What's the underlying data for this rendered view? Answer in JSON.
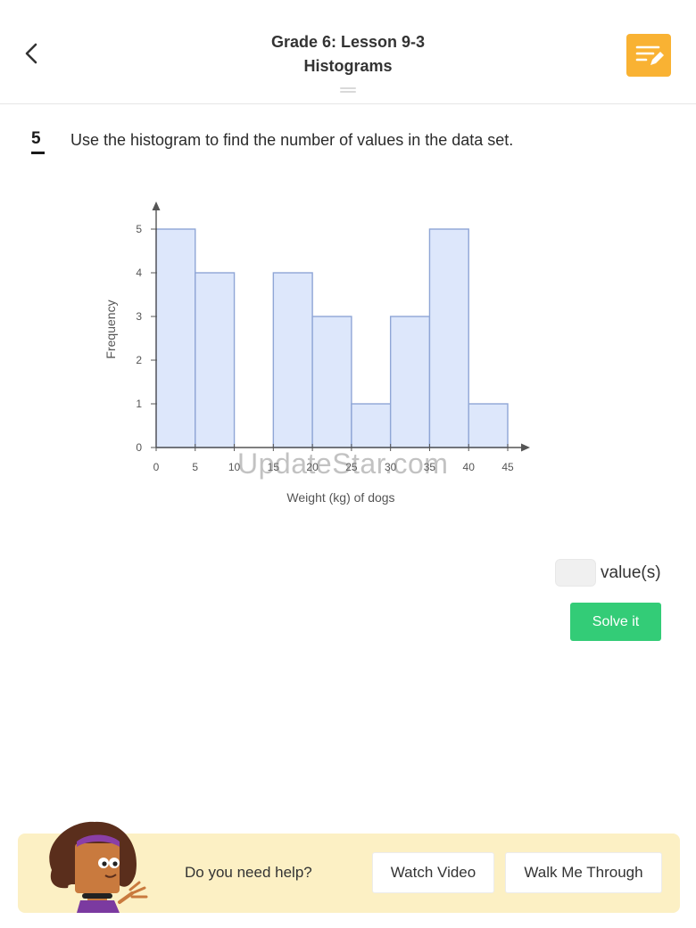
{
  "header": {
    "title_line1": "Grade 6: Lesson 9-3",
    "title_line2": "Histograms"
  },
  "question": {
    "number": "5",
    "text": "Use the histogram to find the number of values in the data set."
  },
  "chart_data": {
    "type": "bar",
    "categories": [
      "0-5",
      "5-10",
      "10-15",
      "15-20",
      "20-25",
      "25-30",
      "30-35",
      "35-40",
      "40-45"
    ],
    "bin_edges": [
      0,
      5,
      10,
      15,
      20,
      25,
      30,
      35,
      40,
      45
    ],
    "values": [
      5,
      4,
      0,
      4,
      3,
      1,
      3,
      5,
      1
    ],
    "title": "",
    "xlabel": "Weight (kg) of dogs",
    "ylabel": "Frequency",
    "xlim": [
      0,
      45
    ],
    "ylim": [
      0,
      5
    ],
    "x_ticks": [
      0,
      5,
      10,
      15,
      20,
      25,
      30,
      35,
      40,
      45
    ],
    "y_ticks": [
      0,
      1,
      2,
      3,
      4,
      5
    ],
    "grid": false,
    "bar_fill": "#dde7fb",
    "bar_stroke": "#8fa6d6"
  },
  "watermark": "UpdateStar.com",
  "answer": {
    "value": "",
    "unit": "value(s)"
  },
  "solve_label": "Solve it",
  "help": {
    "prompt": "Do you need help?",
    "watch_label": "Watch Video",
    "walk_label": "Walk Me Through"
  },
  "icons": {
    "back": "chevron-left-icon",
    "notes": "notes-edit-icon"
  },
  "colors": {
    "accent_orange": "#f9b233",
    "solve_green": "#33cc77",
    "help_bar": "#fcf0c4"
  }
}
